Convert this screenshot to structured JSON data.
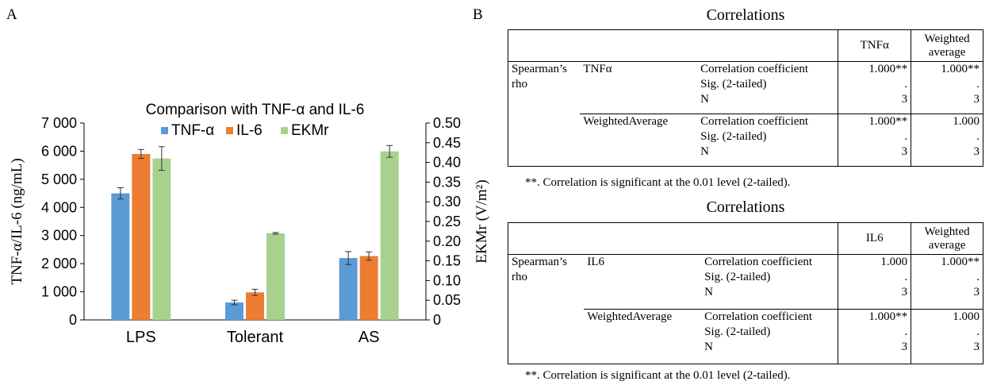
{
  "panel_a_label": "A",
  "panel_b_label": "B",
  "chart_data": {
    "type": "bar",
    "title": "Comparison with TNF-α and IL-6",
    "categories": [
      "LPS",
      "Tolerant",
      "AS"
    ],
    "ylabel_left": "TNF-α/IL-6 (ng/mL)",
    "ylabel_right": "EKMr (V/m²)",
    "ylim_left": [
      0,
      7000
    ],
    "ylim_right": [
      0,
      0.5
    ],
    "yticks_left": [
      "0",
      "1 000",
      "2 000",
      "3 000",
      "4 000",
      "5 000",
      "6 000",
      "7 000"
    ],
    "yticks_right": [
      "0",
      "0.05",
      "0.10",
      "0.15",
      "0.20",
      "0.25",
      "0.30",
      "0.35",
      "0.40",
      "0.45",
      "0.50"
    ],
    "legend_position": "top",
    "grid": false,
    "series": [
      {
        "name": "TNF-α",
        "axis": "left",
        "color": "#5B9BD5",
        "values": [
          4500,
          620,
          2200
        ],
        "errors": [
          200,
          80,
          230
        ]
      },
      {
        "name": "IL-6",
        "axis": "left",
        "color": "#ED7D31",
        "values": [
          5900,
          980,
          2270
        ],
        "errors": [
          160,
          110,
          150
        ]
      },
      {
        "name": "EKMr",
        "axis": "right",
        "color": "#A9D18E",
        "values": [
          0.41,
          0.22,
          0.428
        ],
        "errors": [
          0.03,
          0.002,
          0.015
        ]
      }
    ]
  },
  "tables": [
    {
      "title": "Correlations",
      "var_header": "TNFα",
      "weighted_header": [
        "Weighted",
        "average"
      ],
      "rho_lines": [
        "Spearman’s",
        "rho"
      ],
      "groups": [
        {
          "name": "TNFα",
          "var_vals": [
            "1.000**",
            ".",
            "3"
          ],
          "weighted_vals": [
            "1.000**",
            ".",
            "3"
          ]
        },
        {
          "name": "WeightedAverage",
          "var_vals": [
            "1.000**",
            ".",
            "3"
          ],
          "weighted_vals": [
            "1.000",
            ".",
            "3"
          ]
        }
      ],
      "stats": [
        "Correlation coefficient",
        "Sig. (2-tailed)",
        "N"
      ],
      "note": "**. Correlation is significant at the 0.01 level (2-tailed)."
    },
    {
      "title": "Correlations",
      "var_header": "IL6",
      "weighted_header": [
        "Weighted",
        "average"
      ],
      "rho_lines": [
        "Spearman’s",
        "rho"
      ],
      "groups": [
        {
          "name": "IL6",
          "var_vals": [
            "1.000",
            ".",
            "3"
          ],
          "weighted_vals": [
            "1.000**",
            ".",
            "3"
          ]
        },
        {
          "name": "WeightedAverage",
          "var_vals": [
            "1.000**",
            ".",
            "3"
          ],
          "weighted_vals": [
            "1.000",
            ".",
            "3"
          ]
        }
      ],
      "stats": [
        "Correlation coefficient",
        "Sig. (2-tailed)",
        "N"
      ],
      "note": "**. Correlation is significant at the 0.01 level (2-tailed)."
    }
  ]
}
